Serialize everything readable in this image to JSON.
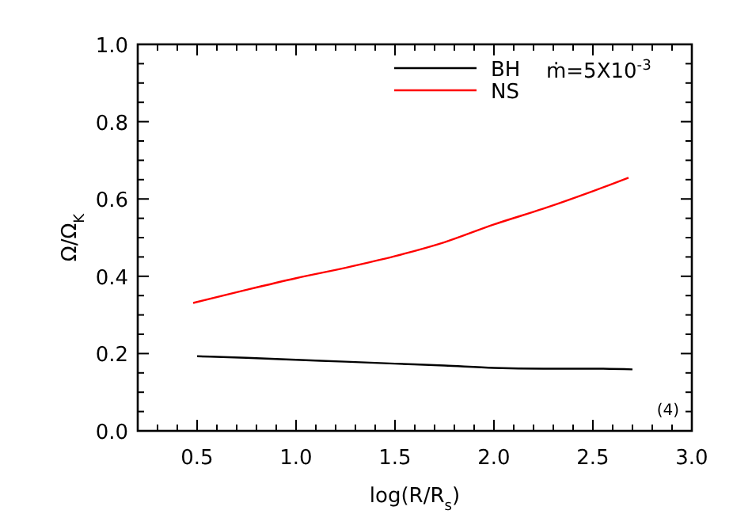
{
  "chart_data": {
    "type": "line",
    "xlabel": "log(R/R$_{s}$)",
    "ylabel": "Ω/Ω$_{K}$",
    "xlim": [
      0.2,
      3.0
    ],
    "ylim": [
      0,
      1
    ],
    "xticks": [
      {
        "value": 0.2,
        "label": null
      },
      {
        "value": 0.3,
        "label": null
      },
      {
        "value": 0.4,
        "label": null
      },
      "0.5",
      {
        "value": 0.6,
        "label": null
      },
      {
        "value": 0.7,
        "label": null
      },
      {
        "value": 0.8,
        "label": null
      },
      {
        "value": 0.9,
        "label": null
      },
      {
        "value": 1.0,
        "label": "1.0"
      },
      {
        "value": 1.1,
        "label": null
      },
      {
        "value": 1.2,
        "label": null
      },
      {
        "value": 1.3,
        "label": null
      },
      {
        "value": 1.4,
        "label": null
      },
      1.5,
      {
        "value": 1.6,
        "label": null
      },
      {
        "value": 1.7,
        "label": null
      },
      {
        "value": 1.8,
        "label": null
      },
      {
        "value": 1.9,
        "label": null
      },
      {
        "value": 2.0,
        "label": "2.0"
      },
      {
        "value": 2.1,
        "label": null
      },
      {
        "value": 2.2,
        "label": null
      },
      {
        "value": 2.3,
        "label": null
      },
      {
        "value": 2.4,
        "label": null
      },
      2.5,
      {
        "value": 2.6,
        "label": null
      },
      {
        "value": 2.7,
        "label": null
      },
      {
        "value": 2.8,
        "label": null
      },
      {
        "value": 2.9,
        "label": null
      },
      {
        "value": 3.0,
        "label": "3.0"
      }
    ],
    "yticks": [
      {
        "value": 0,
        "label": "0.0"
      },
      {
        "value": 0.05,
        "label": null
      },
      {
        "value": 0.1,
        "label": null
      },
      {
        "value": 0.15,
        "label": null
      },
      0.2,
      {
        "value": 0.25,
        "label": null
      },
      {
        "value": 0.3,
        "label": null
      },
      {
        "value": 0.35,
        "label": null
      },
      0.4,
      {
        "value": 0.45,
        "label": null
      },
      {
        "value": 0.5,
        "label": null
      },
      {
        "value": 0.55,
        "label": null
      },
      0.6,
      {
        "value": 0.65,
        "label": null
      },
      {
        "value": 0.7,
        "label": null
      },
      {
        "value": 0.75,
        "label": null
      },
      0.8,
      {
        "value": 0.85,
        "label": null
      },
      {
        "value": 0.9,
        "label": null
      },
      {
        "value": 0.95,
        "label": null
      },
      {
        "value": 1.0,
        "label": "1.0"
      }
    ],
    "legend": "top right",
    "grid": false,
    "annotations": [
      "ṁ=5X10$^{-3}$",
      "(4)"
    ],
    "series": [
      {
        "name": "BH",
        "color": "#000000",
        "x": [
          0.5,
          0.75,
          1.0,
          1.25,
          1.5,
          1.75,
          2.0,
          2.25,
          2.5,
          2.7
        ],
        "values": [
          0.193,
          0.189,
          0.184,
          0.179,
          0.174,
          0.169,
          0.163,
          0.161,
          0.161,
          0.159
        ]
      },
      {
        "name": "NS",
        "color": "#ff0000",
        "x": [
          0.48,
          0.75,
          1.0,
          1.25,
          1.5,
          1.75,
          2.0,
          2.25,
          2.5,
          2.68
        ],
        "values": [
          0.331,
          0.365,
          0.395,
          0.422,
          0.452,
          0.488,
          0.534,
          0.575,
          0.62,
          0.655
        ]
      }
    ]
  }
}
